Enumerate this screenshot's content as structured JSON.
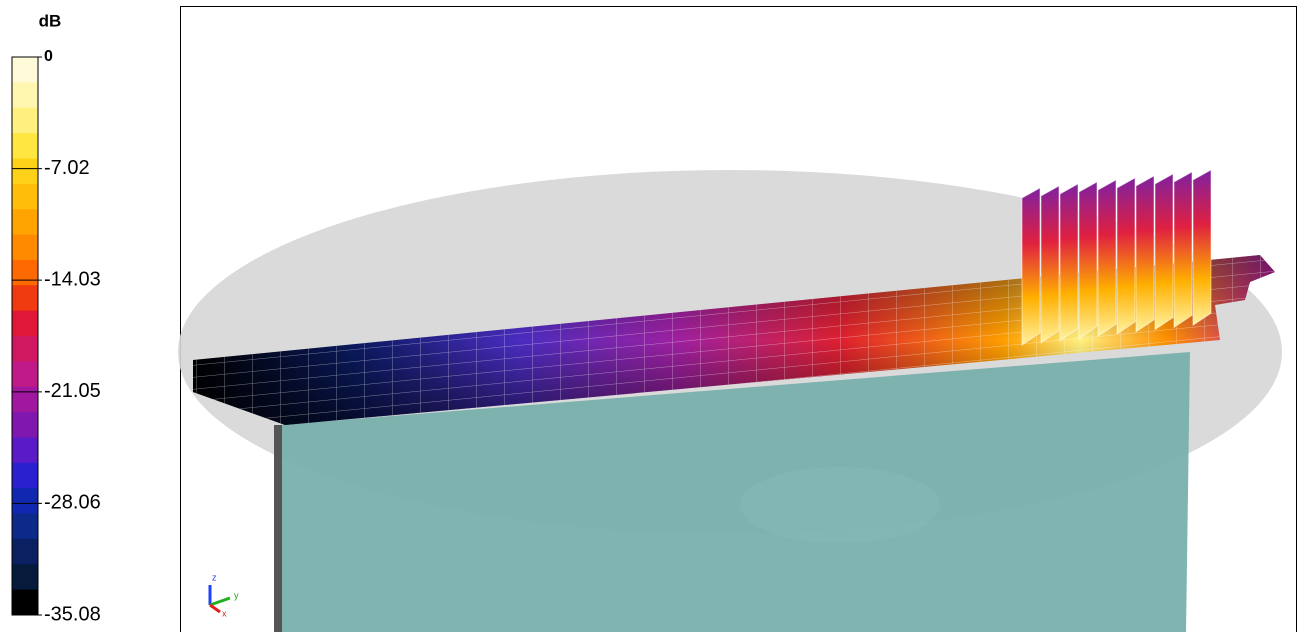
{
  "legend": {
    "unit": "dB",
    "ticks": [
      0,
      -7.02,
      -14.03,
      -21.05,
      -28.06,
      -35.08
    ],
    "ylim": [
      -35.08,
      0
    ]
  },
  "axes_triad": {
    "z": "z",
    "y": "y",
    "x": "x"
  }
}
